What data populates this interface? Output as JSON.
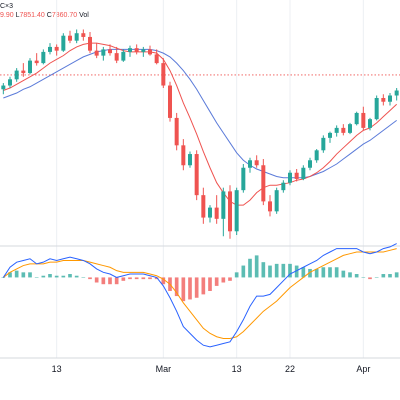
{
  "header": {
    "fragment": "C×3",
    "open_val": "9.90",
    "low_label": "L",
    "low_val": "7851.40",
    "close_label": "C",
    "close_val": "7860.70",
    "vol_label": "Vol"
  },
  "colors": {
    "up": "#26a69a",
    "down": "#ef5350",
    "ma_fast": "#ef5350",
    "ma_slow": "#5b7bd9",
    "macd": "#2962ff",
    "signal": "#ff9800",
    "hist_up": "#26a69a",
    "hist_down": "#ef5350",
    "price_line": "#ef5350",
    "grid": "#eceff3"
  },
  "chart_data": [
    {
      "type": "candlestick",
      "title": "",
      "xlabel": "",
      "ylabel": "",
      "x_ticks": [
        {
          "label": "13",
          "index": 8
        },
        {
          "label": "Mar",
          "index": 24
        },
        {
          "label": "13",
          "index": 35
        },
        {
          "label": "22",
          "index": 43
        },
        {
          "label": "Apr",
          "index": 54
        }
      ],
      "candles": [
        [
          7510,
          7560,
          7470,
          7540
        ],
        [
          7540,
          7610,
          7520,
          7590
        ],
        [
          7590,
          7680,
          7570,
          7660
        ],
        [
          7660,
          7720,
          7610,
          7640
        ],
        [
          7640,
          7760,
          7630,
          7740
        ],
        [
          7740,
          7800,
          7700,
          7720
        ],
        [
          7720,
          7830,
          7710,
          7810
        ],
        [
          7810,
          7880,
          7790,
          7850
        ],
        [
          7850,
          7870,
          7780,
          7820
        ],
        [
          7820,
          7960,
          7810,
          7940
        ],
        [
          7940,
          7980,
          7880,
          7900
        ],
        [
          7900,
          7990,
          7880,
          7960
        ],
        [
          7960,
          7990,
          7900,
          7930
        ],
        [
          7930,
          7970,
          7800,
          7820
        ],
        [
          7820,
          7880,
          7760,
          7780
        ],
        [
          7780,
          7850,
          7740,
          7830
        ],
        [
          7830,
          7870,
          7780,
          7800
        ],
        [
          7800,
          7850,
          7720,
          7740
        ],
        [
          7740,
          7830,
          7730,
          7810
        ],
        [
          7810,
          7860,
          7770,
          7840
        ],
        [
          7840,
          7870,
          7790,
          7810
        ],
        [
          7810,
          7850,
          7770,
          7830
        ],
        [
          7830,
          7860,
          7780,
          7790
        ],
        [
          7790,
          7830,
          7710,
          7720
        ],
        [
          7720,
          7760,
          7520,
          7540
        ],
        [
          7540,
          7570,
          7250,
          7280
        ],
        [
          7280,
          7320,
          7020,
          7060
        ],
        [
          7060,
          7110,
          6860,
          6900
        ],
        [
          6900,
          7010,
          6880,
          6990
        ],
        [
          6990,
          7020,
          6620,
          6660
        ],
        [
          6660,
          6720,
          6430,
          6480
        ],
        [
          6480,
          6580,
          6440,
          6560
        ],
        [
          6560,
          6660,
          6430,
          6470
        ],
        [
          6470,
          6720,
          6330,
          6690
        ],
        [
          6690,
          6740,
          6310,
          6370
        ],
        [
          6370,
          6720,
          6340,
          6700
        ],
        [
          6700,
          6910,
          6680,
          6880
        ],
        [
          6880,
          6960,
          6840,
          6940
        ],
        [
          6940,
          6980,
          6880,
          6900
        ],
        [
          6900,
          6950,
          6580,
          6610
        ],
        [
          6610,
          6660,
          6490,
          6530
        ],
        [
          6530,
          6720,
          6510,
          6700
        ],
        [
          6700,
          6780,
          6680,
          6760
        ],
        [
          6760,
          6860,
          6740,
          6840
        ],
        [
          6840,
          6870,
          6770,
          6790
        ],
        [
          6790,
          6900,
          6780,
          6880
        ],
        [
          6880,
          6960,
          6860,
          6940
        ],
        [
          6940,
          7030,
          6920,
          7020
        ],
        [
          7020,
          7140,
          7000,
          7120
        ],
        [
          7120,
          7170,
          7080,
          7160
        ],
        [
          7160,
          7220,
          7130,
          7200
        ],
        [
          7200,
          7230,
          7140,
          7160
        ],
        [
          7160,
          7240,
          7150,
          7230
        ],
        [
          7230,
          7330,
          7220,
          7320
        ],
        [
          7320,
          7370,
          7180,
          7200
        ],
        [
          7200,
          7280,
          7180,
          7270
        ],
        [
          7270,
          7460,
          7260,
          7440
        ],
        [
          7440,
          7470,
          7380,
          7410
        ],
        [
          7410,
          7480,
          7380,
          7460
        ],
        [
          7460,
          7520,
          7420,
          7500
        ]
      ],
      "ma_fast": [
        7500,
        7520,
        7550,
        7580,
        7610,
        7640,
        7680,
        7720,
        7750,
        7780,
        7820,
        7850,
        7870,
        7880,
        7880,
        7870,
        7860,
        7840,
        7820,
        7810,
        7810,
        7810,
        7810,
        7800,
        7750,
        7660,
        7540,
        7400,
        7280,
        7150,
        7010,
        6880,
        6760,
        6680,
        6610,
        6580,
        6580,
        6620,
        6680,
        6720,
        6740,
        6740,
        6750,
        6760,
        6780,
        6790,
        6810,
        6840,
        6880,
        6930,
        6990,
        7040,
        7090,
        7140,
        7180,
        7200,
        7240,
        7290,
        7340,
        7390
      ],
      "ma_slow": [
        7440,
        7460,
        7480,
        7510,
        7530,
        7560,
        7590,
        7620,
        7650,
        7680,
        7710,
        7740,
        7770,
        7790,
        7810,
        7820,
        7830,
        7830,
        7830,
        7830,
        7830,
        7830,
        7830,
        7820,
        7800,
        7770,
        7720,
        7660,
        7590,
        7510,
        7420,
        7330,
        7240,
        7160,
        7080,
        7000,
        6940,
        6900,
        6870,
        6850,
        6830,
        6810,
        6800,
        6800,
        6800,
        6800,
        6810,
        6830,
        6850,
        6880,
        6910,
        6950,
        6990,
        7030,
        7070,
        7100,
        7140,
        7180,
        7220,
        7260
      ],
      "price_line": 7625,
      "ylim": [
        6300,
        8050
      ]
    },
    {
      "type": "macd",
      "macd": [
        0,
        60,
        90,
        100,
        110,
        80,
        90,
        110,
        100,
        110,
        120,
        110,
        100,
        80,
        50,
        30,
        20,
        0,
        10,
        20,
        20,
        20,
        10,
        0,
        -50,
        -120,
        -200,
        -290,
        -330,
        -370,
        -400,
        -410,
        -400,
        -390,
        -380,
        -320,
        -250,
        -170,
        -110,
        -110,
        -100,
        -60,
        -20,
        20,
        40,
        60,
        80,
        100,
        130,
        150,
        170,
        170,
        170,
        170,
        150,
        140,
        150,
        170,
        180,
        200
      ],
      "signal": [
        0,
        30,
        50,
        70,
        80,
        80,
        80,
        90,
        90,
        100,
        100,
        100,
        100,
        90,
        80,
        70,
        60,
        40,
        30,
        30,
        30,
        30,
        20,
        10,
        -10,
        -40,
        -90,
        -150,
        -200,
        -250,
        -300,
        -330,
        -350,
        -360,
        -360,
        -350,
        -320,
        -280,
        -240,
        -200,
        -170,
        -140,
        -100,
        -60,
        -30,
        0,
        30,
        50,
        70,
        90,
        110,
        130,
        140,
        150,
        150,
        150,
        150,
        150,
        160,
        170
      ],
      "histogram": [
        0,
        30,
        40,
        30,
        30,
        0,
        10,
        20,
        10,
        10,
        20,
        10,
        0,
        -10,
        -30,
        -40,
        -40,
        -40,
        -20,
        -10,
        -10,
        -10,
        -10,
        -10,
        -40,
        -80,
        -110,
        -140,
        -130,
        -120,
        -100,
        -80,
        -50,
        -30,
        -20,
        30,
        70,
        110,
        130,
        90,
        70,
        80,
        80,
        80,
        70,
        60,
        50,
        50,
        60,
        60,
        60,
        40,
        30,
        20,
        0,
        -10,
        0,
        20,
        20,
        30
      ],
      "ylim": [
        -440,
        150
      ]
    }
  ]
}
